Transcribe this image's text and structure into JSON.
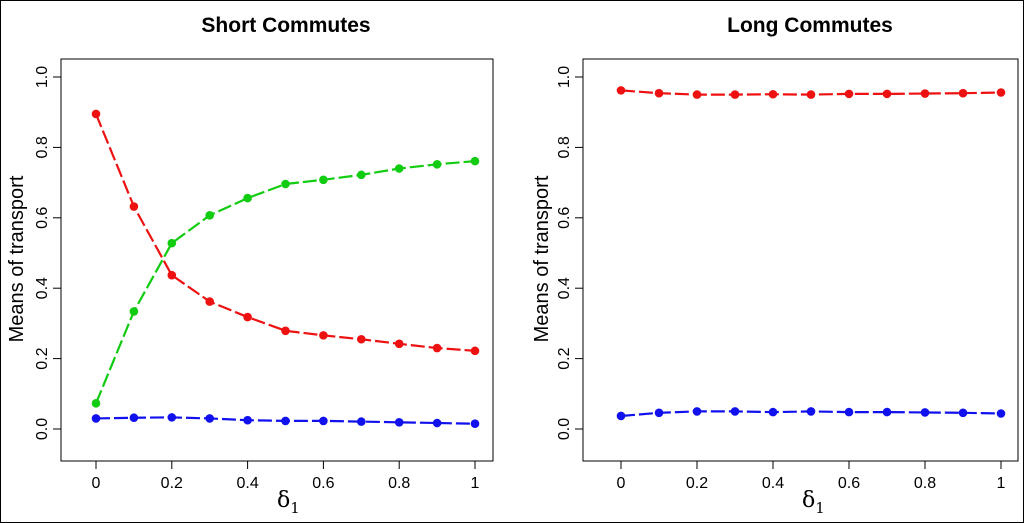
{
  "colors": {
    "red": "#ee1111",
    "green": "#11cc11",
    "blue": "#1111ee"
  },
  "chart_data": [
    {
      "type": "line",
      "title": "Short Commutes",
      "xlabel_symbol": "δ",
      "xlabel_subscript": "1",
      "ylabel": "Means of transport",
      "xlim": [
        0,
        1
      ],
      "ylim": [
        0,
        1
      ],
      "x": [
        0,
        0.1,
        0.2,
        0.3,
        0.4,
        0.5,
        0.6,
        0.7,
        0.8,
        0.9,
        1.0
      ],
      "xticks": [
        "0",
        "0.2",
        "0.4",
        "0.6",
        "0.8",
        "1"
      ],
      "yticks": [
        "0.0",
        "0.2",
        "0.4",
        "0.6",
        "0.8",
        "1.0"
      ],
      "grid": false,
      "series": [
        {
          "color": "red",
          "line_style": "dashed",
          "values": [
            0.895,
            0.632,
            0.437,
            0.362,
            0.318,
            0.279,
            0.266,
            0.255,
            0.242,
            0.23,
            0.222
          ]
        },
        {
          "color": "green",
          "line_style": "dashed",
          "values": [
            0.073,
            0.334,
            0.528,
            0.607,
            0.656,
            0.696,
            0.708,
            0.722,
            0.74,
            0.752,
            0.761
          ]
        },
        {
          "color": "blue",
          "line_style": "dashed",
          "values": [
            0.03,
            0.032,
            0.033,
            0.03,
            0.025,
            0.023,
            0.023,
            0.021,
            0.019,
            0.017,
            0.015
          ]
        }
      ]
    },
    {
      "type": "line",
      "title": "Long Commutes",
      "xlabel_symbol": "δ",
      "xlabel_subscript": "1",
      "ylabel": "Means of transport",
      "xlim": [
        0,
        1
      ],
      "ylim": [
        0,
        1
      ],
      "x": [
        0,
        0.1,
        0.2,
        0.3,
        0.4,
        0.5,
        0.6,
        0.7,
        0.8,
        0.9,
        1.0
      ],
      "xticks": [
        "0",
        "0.2",
        "0.4",
        "0.6",
        "0.8",
        "1"
      ],
      "yticks": [
        "0.0",
        "0.2",
        "0.4",
        "0.6",
        "0.8",
        "1.0"
      ],
      "grid": false,
      "series": [
        {
          "color": "red",
          "line_style": "dashed",
          "values": [
            0.962,
            0.954,
            0.95,
            0.95,
            0.951,
            0.95,
            0.952,
            0.952,
            0.953,
            0.954,
            0.956
          ]
        },
        {
          "color": "blue",
          "line_style": "dashed",
          "values": [
            0.037,
            0.046,
            0.05,
            0.05,
            0.048,
            0.05,
            0.048,
            0.048,
            0.047,
            0.046,
            0.044
          ]
        }
      ]
    }
  ]
}
